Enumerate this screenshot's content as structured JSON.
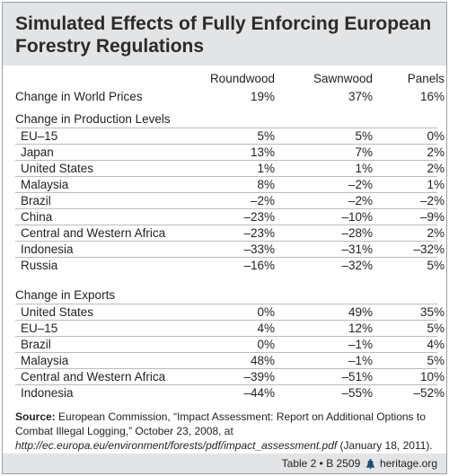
{
  "title_line1": "Simulated Effects of Fully Enforcing European",
  "title_line2": "Forestry Regulations",
  "columns": [
    "Roundwood",
    "Sawnwood",
    "Panels"
  ],
  "world_prices": {
    "label": "Change in World Prices",
    "values": [
      "19%",
      "37%",
      "16%"
    ]
  },
  "production": {
    "title": "Change in Production Levels",
    "rows": [
      {
        "label": "EU–15",
        "values": [
          "5%",
          "5%",
          "0%"
        ]
      },
      {
        "label": "Japan",
        "values": [
          "13%",
          "7%",
          "2%"
        ]
      },
      {
        "label": "United States",
        "values": [
          "1%",
          "1%",
          "2%"
        ]
      },
      {
        "label": "Malaysia",
        "values": [
          "8%",
          "–2%",
          "1%"
        ]
      },
      {
        "label": "Brazil",
        "values": [
          "–2%",
          "–2%",
          "–2%"
        ]
      },
      {
        "label": "China",
        "values": [
          "–23%",
          "–10%",
          "–9%"
        ]
      },
      {
        "label": "Central and Western Africa",
        "values": [
          "–23%",
          "–28%",
          "2%"
        ]
      },
      {
        "label": "Indonesia",
        "values": [
          "–33%",
          "–31%",
          "–32%"
        ]
      },
      {
        "label": "Russia",
        "values": [
          "–16%",
          "–32%",
          "5%"
        ]
      }
    ]
  },
  "exports": {
    "title": "Change in Exports",
    "rows": [
      {
        "label": "United States",
        "values": [
          "0%",
          "49%",
          "35%"
        ]
      },
      {
        "label": "EU–15",
        "values": [
          "4%",
          "12%",
          "5%"
        ]
      },
      {
        "label": "Brazil",
        "values": [
          "0%",
          "–1%",
          "4%"
        ]
      },
      {
        "label": "Malaysia",
        "values": [
          "48%",
          "–1%",
          "5%"
        ]
      },
      {
        "label": "Central and Western Africa",
        "values": [
          "–39%",
          "–51%",
          "10%"
        ]
      },
      {
        "label": "Indonesia",
        "values": [
          "–44%",
          "–55%",
          "–52%"
        ]
      }
    ]
  },
  "source": {
    "label": "Source:",
    "text": " European Commission, “Impact Assessment: Report on Additional Options to Combat Illegal Logging,” October 23, 2008, at ",
    "url": "http://ec.europa.eu/environment/forests/pdf/impact_assessment.pdf",
    "tail": " (January 18, 2011)."
  },
  "footer": {
    "table": "Table 2 • B 2509",
    "site": "heritage.org"
  }
}
